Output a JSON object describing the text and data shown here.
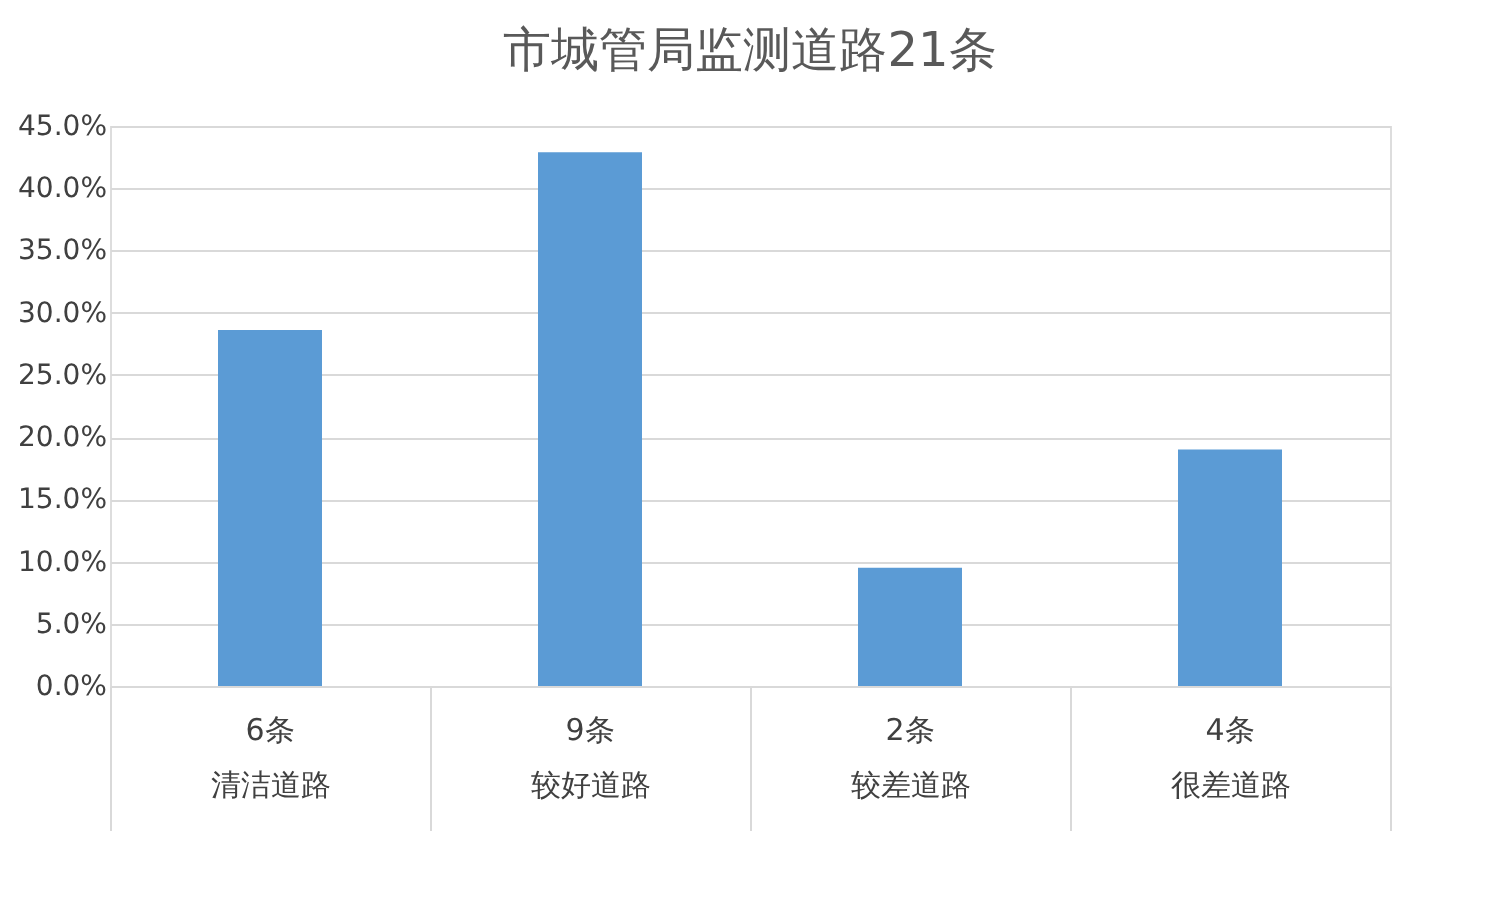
{
  "chart_data": {
    "type": "bar",
    "title": "市城管局监测道路21条",
    "categories": [
      "清洁道路",
      "较好道路",
      "较差道路",
      "很差道路"
    ],
    "values": [
      28.6,
      42.9,
      9.5,
      19.0
    ],
    "color": "#5b9bd5",
    "ylim": [
      0,
      45
    ],
    "yticks": [
      {
        "value": 0,
        "label": "0.0%"
      },
      {
        "value": 5,
        "label": "5.0%"
      },
      {
        "value": 10,
        "label": "10.0%"
      },
      {
        "value": 15,
        "label": "15.0%"
      },
      {
        "value": 20,
        "label": "20.0%"
      },
      {
        "value": 25,
        "label": "25.0%"
      },
      {
        "value": 30,
        "label": "30.0%"
      },
      {
        "value": 35,
        "label": "35.0%"
      },
      {
        "value": 40,
        "label": "40.0%"
      },
      {
        "value": 45,
        "label": "45.0%"
      }
    ],
    "annotations": [
      "6条",
      "9条",
      "2条",
      "4条"
    ],
    "grid": "y"
  }
}
